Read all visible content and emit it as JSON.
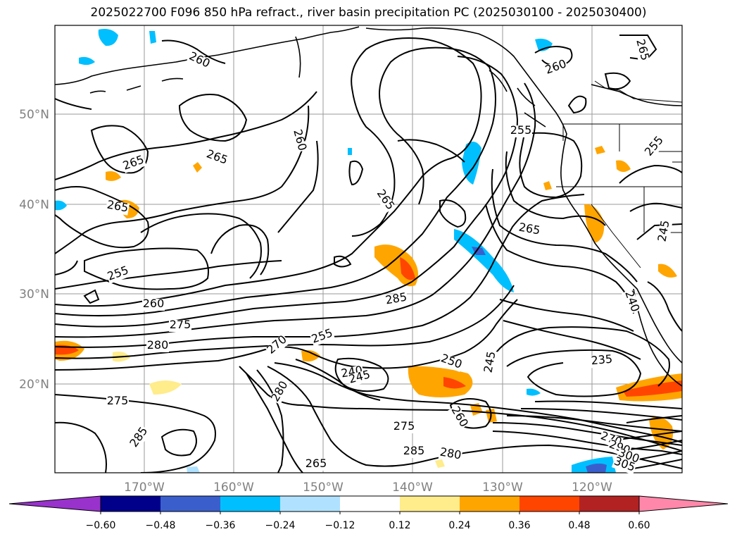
{
  "title": "2025022700 F096 850 hPa refract., river basin precipitation PC (2025030100 - 2025030400)",
  "map": {
    "lat_labels": [
      "50°N",
      "40°N",
      "30°N",
      "20°N"
    ],
    "lon_labels": [
      "170°W",
      "160°W",
      "150°W",
      "140°W",
      "130°W",
      "120°W"
    ],
    "contour_labels": [
      "260",
      "265",
      "265",
      "260",
      "265",
      "255",
      "260",
      "275",
      "280",
      "275",
      "285",
      "270",
      "255",
      "240",
      "245",
      "285",
      "250",
      "245",
      "260",
      "275",
      "285",
      "280",
      "265",
      "265",
      "255",
      "265",
      "235",
      "240",
      "245",
      "255",
      "260",
      "265",
      "280",
      "270",
      "290",
      "300",
      "305"
    ]
  },
  "colorbar": {
    "ticks": [
      "−0.60",
      "−0.48",
      "−0.36",
      "−0.24",
      "−0.12",
      "0.12",
      "0.24",
      "0.36",
      "0.48",
      "0.60"
    ],
    "colors": [
      "#9932cc",
      "#00008b",
      "#3a5fcd",
      "#00bfff",
      "#b0e2ff",
      "#ffffff",
      "#ffec8b",
      "#ffa500",
      "#ff4500",
      "#b22222",
      "#ff88aa"
    ]
  }
}
